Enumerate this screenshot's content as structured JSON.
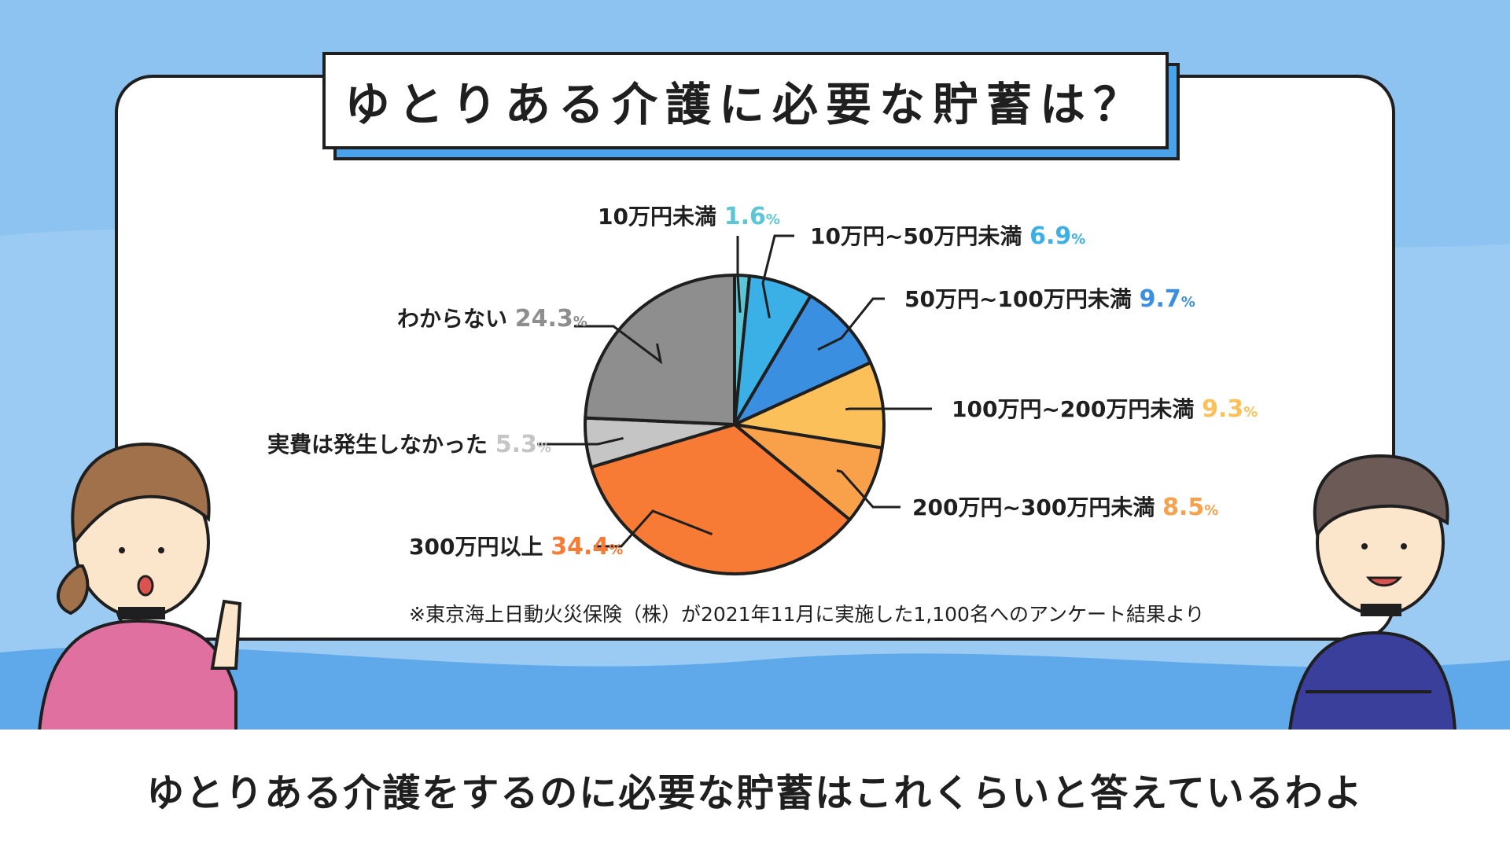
{
  "title": "ゆとりある介護に必要な貯蓄は？",
  "note": "※東京海上日動火災保険（株）が2021年11月に実施した1,100名へのアンケート結果より",
  "caption": "ゆとりある介護をするのに必要な貯蓄はこれくらいと答えているわよ",
  "colors": {
    "background": "#8cc3f0",
    "wave_light": "#a9d3f5",
    "wave_dark": "#5fa9ea",
    "title_shadow": "#4aa3e8"
  },
  "chart_data": {
    "type": "pie",
    "unit": "%",
    "slices": [
      {
        "label": "10万円未満",
        "value": 1.6,
        "color": "#5bc6d6"
      },
      {
        "label": "10万円~50万円未満",
        "value": 6.9,
        "color": "#3ab0e6"
      },
      {
        "label": "50万円~100万円未満",
        "value": 9.7,
        "color": "#3a8fe0"
      },
      {
        "label": "100万円~200万円未満",
        "value": 9.3,
        "color": "#fcc05a"
      },
      {
        "label": "200万円~300万円未満",
        "value": 8.5,
        "color": "#f9a04b"
      },
      {
        "label": "300万円以上",
        "value": 34.4,
        "color": "#f77b34"
      },
      {
        "label": "実費は発生しなかった",
        "value": 5.3,
        "color": "#c5c5c5"
      },
      {
        "label": "わからない",
        "value": 24.3,
        "color": "#8e8e8e"
      }
    ]
  }
}
